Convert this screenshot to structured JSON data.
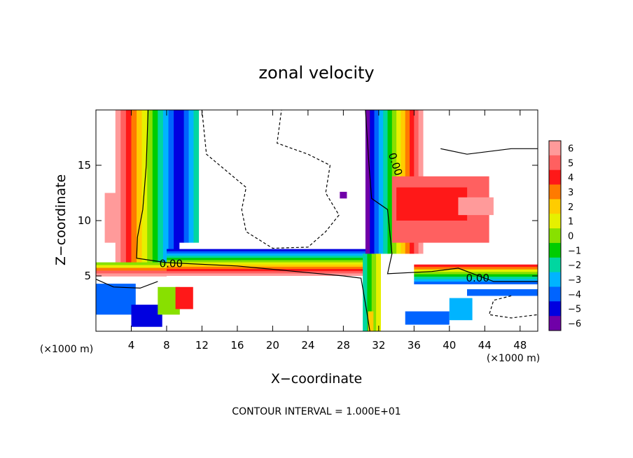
{
  "chart_data": {
    "type": "heatmap",
    "title": "zonal velocity",
    "xlabel": "X−coordinate",
    "ylabel": "Z−coordinate",
    "x_units": "(×1000 m)",
    "y_units": "(×1000 m)",
    "xlim": [
      0,
      50
    ],
    "ylim": [
      0,
      20
    ],
    "xticks": [
      4,
      8,
      12,
      16,
      20,
      24,
      28,
      32,
      36,
      40,
      44,
      48
    ],
    "yticks": [
      5,
      10,
      15
    ],
    "colorbar": {
      "ticks": [
        6,
        5,
        4,
        3,
        2,
        1,
        0,
        -1,
        -2,
        -3,
        -4,
        -5,
        -6
      ],
      "tick_labels": [
        "6",
        "5",
        "4",
        "3",
        "2",
        "1",
        "0",
        "−1",
        "−2",
        "−3",
        "−4",
        "−5",
        "−6"
      ],
      "colors": [
        "#ff9a9a",
        "#ff6060",
        "#ff1818",
        "#ff7a00",
        "#ffcc00",
        "#e6f000",
        "#88e000",
        "#00cc00",
        "#00d6a0",
        "#00b4ff",
        "#0064ff",
        "#0000e0",
        "#7000a8"
      ]
    },
    "contour_labels": [
      "0.00",
      "0.00",
      "0.00"
    ],
    "footer": "CONTOUR INTERVAL = 1.000E+01"
  }
}
